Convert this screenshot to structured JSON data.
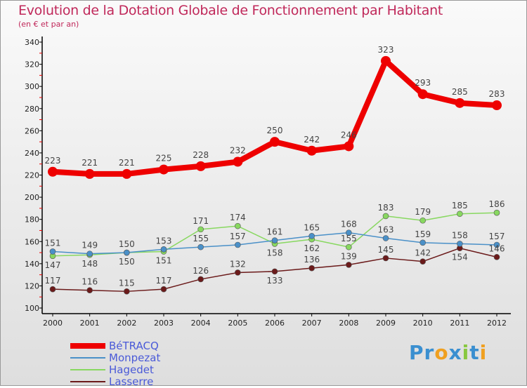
{
  "chart_data": {
    "type": "line",
    "title": "Evolution de la Dotation Globale de Fonctionnement par Habitant",
    "subtitle": "(en € et par an)",
    "xlabel": "",
    "ylabel": "",
    "x": [
      "2000",
      "2001",
      "2002",
      "2003",
      "2004",
      "2005",
      "2006",
      "2007",
      "2008",
      "2009",
      "2010",
      "2011",
      "2012"
    ],
    "ylim": [
      100,
      340
    ],
    "yticks": [
      100,
      120,
      140,
      160,
      180,
      200,
      220,
      240,
      260,
      280,
      300,
      320,
      340
    ],
    "legend_position": "bottom-left",
    "series": [
      {
        "name": "BéTRACQ",
        "color": "#ee0000",
        "values": [
          223,
          221,
          221,
          225,
          228,
          232,
          250,
          242,
          246,
          323,
          293,
          285,
          283
        ]
      },
      {
        "name": "Monpezat",
        "color": "#4a90c8",
        "values": [
          151,
          149,
          150,
          153,
          155,
          157,
          161,
          165,
          168,
          163,
          159,
          158,
          157
        ]
      },
      {
        "name": "Hagedet",
        "color": "#88d860",
        "values": [
          147,
          148,
          150,
          151,
          171,
          174,
          158,
          162,
          155,
          183,
          179,
          185,
          186
        ]
      },
      {
        "name": "Lasserre",
        "color": "#6b1a1a",
        "values": [
          117,
          116,
          115,
          117,
          126,
          132,
          133,
          136,
          139,
          145,
          142,
          154,
          146
        ]
      }
    ]
  },
  "logo": "Proxiti"
}
